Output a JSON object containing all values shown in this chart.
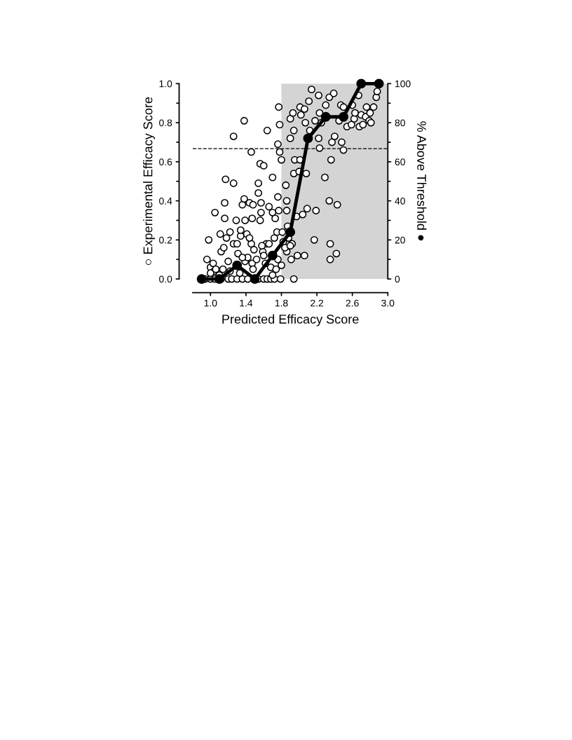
{
  "chart_data": {
    "type": "scatter",
    "xlabel": "Predicted Efficacy Score",
    "ylabel": "○ Experimental Efficacy Score",
    "y2label": "% Above Threshold ●",
    "xlim": [
      0.8,
      3.0
    ],
    "xticks": [
      {
        "value": 1.0,
        "label": "1.0"
      },
      1.4,
      1.8,
      2.2,
      2.6,
      {
        "value": 3.0,
        "label": "3.0"
      }
    ],
    "ylim": [
      0.0,
      1.0
    ],
    "yticks": [
      {
        "value": 0.0,
        "label": "0.0"
      },
      0.2,
      0.4,
      0.6,
      0.8,
      {
        "value": 1.0,
        "label": "1.0"
      }
    ],
    "y2lim": [
      0,
      100
    ],
    "y2ticks": [
      0,
      20,
      40,
      60,
      80,
      100
    ],
    "grid": false,
    "bands": [
      {
        "axis": "x",
        "from": 1.8,
        "to": 3.0,
        "color": "#d4d4d4"
      }
    ],
    "ref_lines": [
      {
        "axis": "y",
        "value": 0.667,
        "color": "#000000",
        "line_style": "dashed"
      }
    ],
    "series": [
      {
        "color": "#ffffff",
        "marker": "circle",
        "x": [
          0.96,
          0.98,
          1.0,
          1.03,
          1.05,
          1.04,
          1.11,
          1.12,
          1.16,
          1.17,
          1.16,
          1.18,
          1.15,
          1.2,
          1.22,
          1.26,
          1.26,
          1.26,
          1.29,
          1.31,
          1.34,
          1.36,
          1.38,
          1.39,
          1.38,
          1.41,
          1.44,
          1.46,
          1.48,
          1.47,
          1.46,
          1.49,
          1.47,
          1.54,
          1.54,
          1.56,
          1.57,
          1.57,
          1.56,
          1.6,
          1.63,
          1.59,
          1.64,
          1.66,
          1.7,
          1.7,
          1.72,
          1.73,
          1.76,
          1.77,
          1.75,
          1.76,
          1.78,
          1.77,
          1.78,
          1.8,
          1.81,
          1.85,
          1.86,
          1.86,
          1.86,
          1.87,
          1.9,
          1.93,
          1.94,
          1.9,
          1.95,
          1.94,
          1.92,
          1.94,
          1.97,
          1.98,
          2.01,
          2.02,
          2.01,
          2.0,
          2.06,
          2.07,
          2.04,
          2.09,
          2.08,
          2.06,
          2.11,
          2.14,
          2.12,
          2.18,
          2.17,
          2.19,
          2.22,
          2.23,
          2.25,
          2.22,
          2.23,
          2.29,
          2.3,
          2.34,
          2.34,
          2.35,
          2.35,
          2.36,
          2.37,
          2.39,
          2.4,
          2.42,
          2.43,
          2.45,
          2.47,
          2.48,
          2.5,
          2.5,
          2.54,
          2.59,
          2.6,
          2.62,
          2.63,
          2.67,
          2.68,
          2.7,
          2.72,
          2.75,
          2.76,
          2.79,
          2.8,
          2.81,
          2.84,
          2.87,
          2.88,
          0.94,
          1.0,
          1.05,
          1.12,
          1.2,
          1.24,
          1.3,
          1.36,
          1.42,
          1.54,
          1.6,
          1.64,
          1.68,
          1.72,
          1.79,
          1.0,
          1.06,
          1.1,
          1.14,
          1.22,
          1.33,
          1.39,
          1.42,
          1.48,
          1.52,
          1.58,
          1.6,
          1.62,
          1.66,
          1.68,
          1.7,
          1.74,
          1.76,
          1.8,
          1.82,
          1.84,
          1.88,
          1.9,
          1.91,
          1.34,
          1.3,
          1.44,
          1.36
        ],
        "values": [
          0.1,
          0.2,
          0.06,
          0.08,
          0.34,
          0.04,
          0.23,
          0.14,
          0.39,
          0.51,
          0.31,
          0.21,
          0.16,
          0.09,
          0.24,
          0.73,
          0.49,
          0.18,
          0.3,
          0.13,
          0.22,
          0.38,
          0.81,
          0.3,
          0.41,
          0.23,
          0.39,
          0.65,
          0.38,
          0.31,
          0.18,
          0.15,
          0.08,
          0.49,
          0.44,
          0.59,
          0.39,
          0.34,
          0.3,
          0.58,
          0.18,
          0.14,
          0.76,
          0.37,
          0.52,
          0.34,
          0.21,
          0.31,
          0.42,
          0.35,
          0.24,
          0.69,
          0.79,
          0.88,
          0.65,
          0.61,
          0.24,
          0.48,
          0.4,
          0.35,
          0.14,
          0.27,
          0.82,
          0.85,
          0.76,
          0.72,
          0.61,
          0.54,
          0.18,
          0.0,
          0.32,
          0.12,
          0.88,
          0.84,
          0.61,
          0.55,
          0.87,
          0.8,
          0.33,
          0.36,
          0.54,
          0.12,
          0.91,
          0.97,
          0.76,
          0.81,
          0.2,
          0.35,
          0.94,
          0.85,
          0.8,
          0.72,
          0.67,
          0.52,
          0.89,
          0.93,
          0.4,
          0.18,
          0.1,
          0.61,
          0.7,
          0.95,
          0.73,
          0.13,
          0.38,
          0.81,
          0.89,
          0.7,
          0.66,
          0.88,
          0.78,
          0.79,
          0.89,
          0.82,
          0.85,
          0.94,
          0.78,
          0.84,
          0.79,
          0.83,
          0.88,
          0.81,
          0.85,
          0.8,
          0.88,
          0.93,
          0.96,
          0.0,
          0.0,
          0.0,
          0.0,
          0.0,
          0.0,
          0.0,
          0.0,
          0.0,
          0.0,
          0.0,
          0.0,
          0.0,
          0.0,
          0.0,
          0.03,
          0.05,
          0.02,
          0.05,
          0.04,
          0.03,
          0.09,
          0.11,
          0.05,
          0.1,
          0.17,
          0.12,
          0.08,
          0.18,
          0.06,
          0.02,
          0.05,
          0.1,
          0.07,
          0.19,
          0.16,
          0.21,
          0.17,
          0.1,
          0.25,
          0.18,
          0.21,
          0.11
        ]
      },
      {
        "type": "line",
        "axis": "y2",
        "color": "#000000",
        "marker": "circle",
        "line_style": "solid",
        "x": [
          0.9,
          1.1,
          1.3,
          1.5,
          1.7,
          1.9,
          2.1,
          2.3,
          2.5,
          2.7,
          2.9
        ],
        "values": [
          0,
          0,
          7,
          0,
          12,
          24,
          72,
          83,
          83,
          100,
          100
        ]
      }
    ]
  }
}
